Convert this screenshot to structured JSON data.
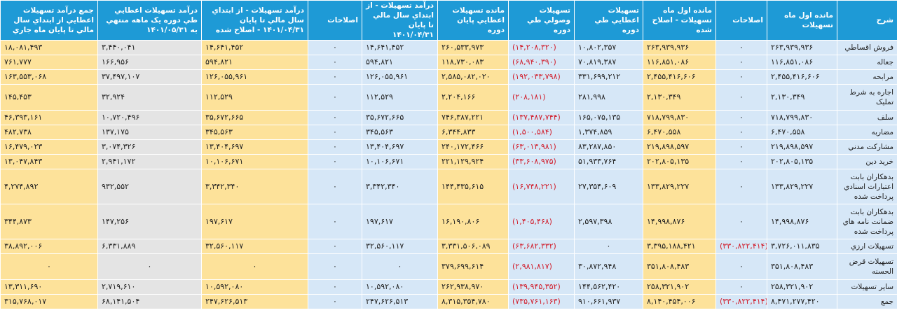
{
  "headers": [
    "شرح",
    "مانده اول ماه تسهيلات",
    "اصلاحات",
    "مانده اول ماه تسهيلات - اصلاح شده",
    "تسهيلات اعطايي طي دوره",
    "تسهيلات وصولي طي دوره",
    "مانده تسهيلات اعطايي پايان دوره",
    "درآمد تسهيلات - از ابتداي سال مالي تا پايان ۱۴۰۱/۰۴/۳۱",
    "اصلاحات",
    "درآمد تسهيلات - از ابتداي سال مالي تا پايان ۱۴۰۱/۰۴/۳۱ - اصلاح شده",
    "درآمد تسهيلات اعطايي طي دوره يک ماهه منتهي به ۱۴۰۱/۰۵/۳۱",
    "جمع درآمد تسهيلات اعطايي از ابتداي سال مالي تا پايان ماه جاري"
  ],
  "rows": [
    {
      "label": "فروش اقساطي",
      "vals": [
        "۲۶۳,۹۳۹,۹۳۶",
        "۰",
        "۲۶۳,۹۳۹,۹۳۶",
        "۱۰,۸۰۲,۳۵۷",
        "(۱۴,۲۰۸,۳۲۰)",
        "۲۶۰,۵۳۳,۹۷۳",
        "۱۴,۶۴۱,۴۵۲",
        "۰",
        "۱۴,۶۴۱,۴۵۲",
        "۳,۴۴۰,۰۴۱",
        "۱۸,۰۸۱,۴۹۳"
      ]
    },
    {
      "label": "جعاله",
      "vals": [
        "۱۱۶,۸۵۱,۰۸۶",
        "۰",
        "۱۱۶,۸۵۱,۰۸۶",
        "۷۰,۸۱۹,۳۸۷",
        "(۶۸,۹۴۰,۳۹۰)",
        "۱۱۸,۷۳۰,۰۸۳",
        "۵۹۴,۸۲۱",
        "۰",
        "۵۹۴,۸۲۱",
        "۱۶۶,۹۵۶",
        "۷۶۱,۷۷۷"
      ]
    },
    {
      "label": "مرابحه",
      "vals": [
        "۲,۴۵۵,۴۱۶,۶۰۶",
        "۰",
        "۲,۴۵۵,۴۱۶,۶۰۶",
        "۳۳۱,۶۹۹,۲۱۲",
        "(۱۹۲,۰۳۳,۷۹۸)",
        "۲,۵۸۵,۰۸۲,۰۲۰",
        "۱۲۶,۰۵۵,۹۶۱",
        "۰",
        "۱۲۶,۰۵۵,۹۶۱",
        "۳۷,۴۹۷,۱۰۷",
        "۱۶۳,۵۵۳,۰۶۸"
      ]
    },
    {
      "label": "اجاره به شرط تمليک",
      "vals": [
        "۲,۱۳۰,۳۴۹",
        "۰",
        "۲,۱۳۰,۳۴۹",
        "۲۸۱,۹۹۸",
        "(۲۰۸,۱۸۱)",
        "۲,۲۰۴,۱۶۶",
        "۱۱۲,۵۲۹",
        "۰",
        "۱۱۲,۵۲۹",
        "۳۲,۹۲۴",
        "۱۴۵,۴۵۳"
      ]
    },
    {
      "label": "سلف",
      "vals": [
        "۷۱۸,۷۹۹,۸۳۰",
        "۰",
        "۷۱۸,۷۹۹,۸۳۰",
        "۱۶۵,۰۷۵,۱۳۵",
        "(۱۳۷,۴۸۷,۷۴۴)",
        "۷۴۶,۳۸۷,۲۲۱",
        "۳۵,۶۷۲,۶۶۵",
        "۰",
        "۳۵,۶۷۲,۶۶۵",
        "۱۰,۷۲۰,۴۹۶",
        "۴۶,۳۹۳,۱۶۱"
      ]
    },
    {
      "label": "مضاربه",
      "vals": [
        "۶,۴۷۰,۵۵۸",
        "۰",
        "۶,۴۷۰,۵۵۸",
        "۱,۳۷۴,۸۵۹",
        "(۱,۵۰۰,۵۸۴)",
        "۶,۳۴۴,۸۳۳",
        "۳۴۵,۵۶۳",
        "۰",
        "۳۴۵,۵۶۳",
        "۱۳۷,۱۷۵",
        "۴۸۲,۷۳۸"
      ]
    },
    {
      "label": "مشارکت مدني",
      "vals": [
        "۲۱۹,۸۹۸,۵۹۷",
        "۰",
        "۲۱۹,۸۹۸,۵۹۷",
        "۸۳,۲۸۷,۸۵۰",
        "(۶۳,۰۱۳,۹۸۱)",
        "۲۴۰,۱۷۲,۴۶۶",
        "۱۳,۴۰۴,۶۹۷",
        "۰",
        "۱۳,۴۰۴,۶۹۷",
        "۳,۰۷۴,۳۲۶",
        "۱۶,۴۷۹,۰۲۳"
      ]
    },
    {
      "label": "خريد دين",
      "vals": [
        "۲۰۲,۸۰۵,۱۳۵",
        "۰",
        "۲۰۲,۸۰۵,۱۳۵",
        "۵۱,۹۳۳,۷۶۴",
        "(۳۳,۶۰۸,۹۷۵)",
        "۲۲۱,۱۲۹,۹۲۴",
        "۱۰,۱۰۶,۶۷۱",
        "۰",
        "۱۰,۱۰۶,۶۷۱",
        "۲,۹۴۱,۱۷۲",
        "۱۳,۰۴۷,۸۴۳"
      ]
    },
    {
      "label": "بدهکاران بابت اعتبارات اسنادي پرداخت شده",
      "vals": [
        "۱۳۳,۸۲۹,۲۲۷",
        "۰",
        "۱۳۳,۸۲۹,۲۲۷",
        "۲۷,۳۵۴,۶۰۹",
        "(۱۶,۷۴۸,۲۲۱)",
        "۱۴۴,۴۳۵,۶۱۵",
        "۳,۳۴۲,۳۴۰",
        "۰",
        "۳,۳۴۲,۳۴۰",
        "۹۳۲,۵۵۲",
        "۴,۲۷۴,۸۹۲"
      ]
    },
    {
      "label": "بدهکاران بابت ضمانت نامه هاي پرداخت شده",
      "vals": [
        "۱۴,۹۹۸,۸۷۶",
        "۰",
        "۱۴,۹۹۸,۸۷۶",
        "۲,۵۹۷,۳۹۸",
        "(۱,۴۰۵,۴۶۸)",
        "۱۶,۱۹۰,۸۰۶",
        "۱۹۷,۶۱۷",
        "۰",
        "۱۹۷,۶۱۷",
        "۱۴۷,۲۵۶",
        "۳۴۴,۸۷۳"
      ]
    },
    {
      "label": "تسهيلات ارزي",
      "vals": [
        "۳,۷۲۶,۰۱۱,۸۳۵",
        "(۳۳۰,۸۲۲,۴۱۴)",
        "۳,۳۹۵,۱۸۸,۴۲۱",
        "۰",
        "(۶۳,۶۸۲,۳۳۲)",
        "۳,۳۳۱,۵۰۶,۰۸۹",
        "۳۲,۵۶۰,۱۱۷",
        "۰",
        "۳۲,۵۶۰,۱۱۷",
        "۶,۳۳۱,۸۸۹",
        "۳۸,۸۹۲,۰۰۶"
      ]
    },
    {
      "label": "تسهيلات قرض الحسنه",
      "vals": [
        "۳۵۱,۸۰۸,۴۸۳",
        "۰",
        "۳۵۱,۸۰۸,۴۸۳",
        "۳۰,۸۷۲,۹۴۸",
        "(۲,۹۸۱,۸۱۷)",
        "۳۷۹,۶۹۹,۶۱۴",
        "۰",
        "۰",
        "۰",
        "۰",
        "۰"
      ]
    },
    {
      "label": "ساير تسهيلات",
      "vals": [
        "۲۵۸,۳۲۱,۹۰۲",
        "۰",
        "۲۵۸,۳۲۱,۹۰۲",
        "۱۴۴,۵۶۲,۴۲۰",
        "(۱۳۹,۹۴۵,۳۵۲)",
        "۲۶۲,۹۳۸,۹۷۰",
        "۱۰,۵۹۲,۰۸۰",
        "۰",
        "۱۰,۵۹۲,۰۸۰",
        "۲,۷۱۹,۶۱۰",
        "۱۳,۳۱۱,۶۹۰"
      ]
    },
    {
      "label": "جمع",
      "vals": [
        "۸,۴۷۱,۲۷۷,۴۲۰",
        "(۳۳۰,۸۲۲,۴۱۴)",
        "۸,۱۴۰,۴۵۴,۰۰۶",
        "۹۱۰,۶۶۱,۹۳۷",
        "(۷۳۵,۷۶۱,۱۶۳)",
        "۸,۳۱۵,۳۵۴,۷۸۰",
        "۲۴۷,۶۲۶,۵۱۳",
        "۰",
        "۲۴۷,۶۲۶,۵۱۳",
        "۶۸,۱۴۱,۵۰۴",
        "۳۱۵,۷۶۸,۰۱۷"
      ]
    }
  ],
  "colors": {
    "header": "#1e9ad6",
    "blue_col": "#d6e7f7",
    "yellow_col": "#fde29a",
    "gray_col": "#e4e4e4",
    "negative": "#d11d2b"
  }
}
